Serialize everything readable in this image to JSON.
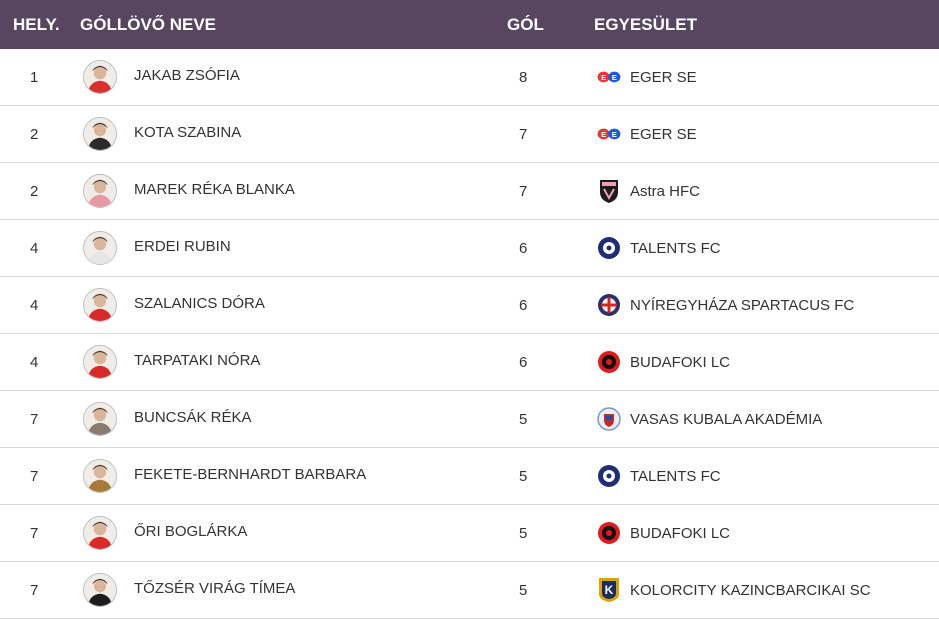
{
  "header": {
    "rank": "HELY.",
    "player": "GÓLLÖVŐ NEVE",
    "goals": "GÓL",
    "club": "EGYESÜLET"
  },
  "rows": [
    {
      "rank": "1",
      "name": "JAKAB ZSÓFIA",
      "goals": "8",
      "club": "EGER SE",
      "club_icon": "eger-se-logo",
      "avatar_color": "#d8302f"
    },
    {
      "rank": "2",
      "name": "KOTA SZABINA",
      "goals": "7",
      "club": "EGER SE",
      "club_icon": "eger-se-logo",
      "avatar_color": "#2b2b2b"
    },
    {
      "rank": "2",
      "name": "MAREK RÉKA BLANKA",
      "goals": "7",
      "club": "Astra HFC",
      "club_icon": "astra-hfc-logo",
      "avatar_color": "#e79aa6"
    },
    {
      "rank": "4",
      "name": "ERDEI RUBIN",
      "goals": "6",
      "club": "TALENTS FC",
      "club_icon": "talents-fc-logo",
      "avatar_color": "#e6e6e6"
    },
    {
      "rank": "4",
      "name": "SZALANICS DÓRA",
      "goals": "6",
      "club": "NYÍREGYHÁZA SPARTACUS FC",
      "club_icon": "nyiregyhaza-logo",
      "avatar_color": "#d92a2a"
    },
    {
      "rank": "4",
      "name": "TARPATAKI NÓRA",
      "goals": "6",
      "club": "BUDAFOKI LC",
      "club_icon": "budafoki-lc-logo",
      "avatar_color": "#d92a2a"
    },
    {
      "rank": "7",
      "name": "BUNCSÁK RÉKA",
      "goals": "5",
      "club": "VASAS KUBALA AKADÉMIA",
      "club_icon": "vasas-logo",
      "avatar_color": "#8a7b72"
    },
    {
      "rank": "7",
      "name": "FEKETE-BERNHARDT BARBARA",
      "goals": "5",
      "club": "TALENTS FC",
      "club_icon": "talents-fc-logo",
      "avatar_color": "#a87a3a"
    },
    {
      "rank": "7",
      "name": "ŐRI BOGLÁRKA",
      "goals": "5",
      "club": "BUDAFOKI LC",
      "club_icon": "budafoki-lc-logo",
      "avatar_color": "#d92a2a"
    },
    {
      "rank": "7",
      "name": "TŐZSÉR VIRÁG TÍMEA",
      "goals": "5",
      "club": "KOLORCITY KAZINCBARCIKAI SC",
      "club_icon": "kolorcity-logo",
      "avatar_color": "#1d1d1d"
    }
  ]
}
